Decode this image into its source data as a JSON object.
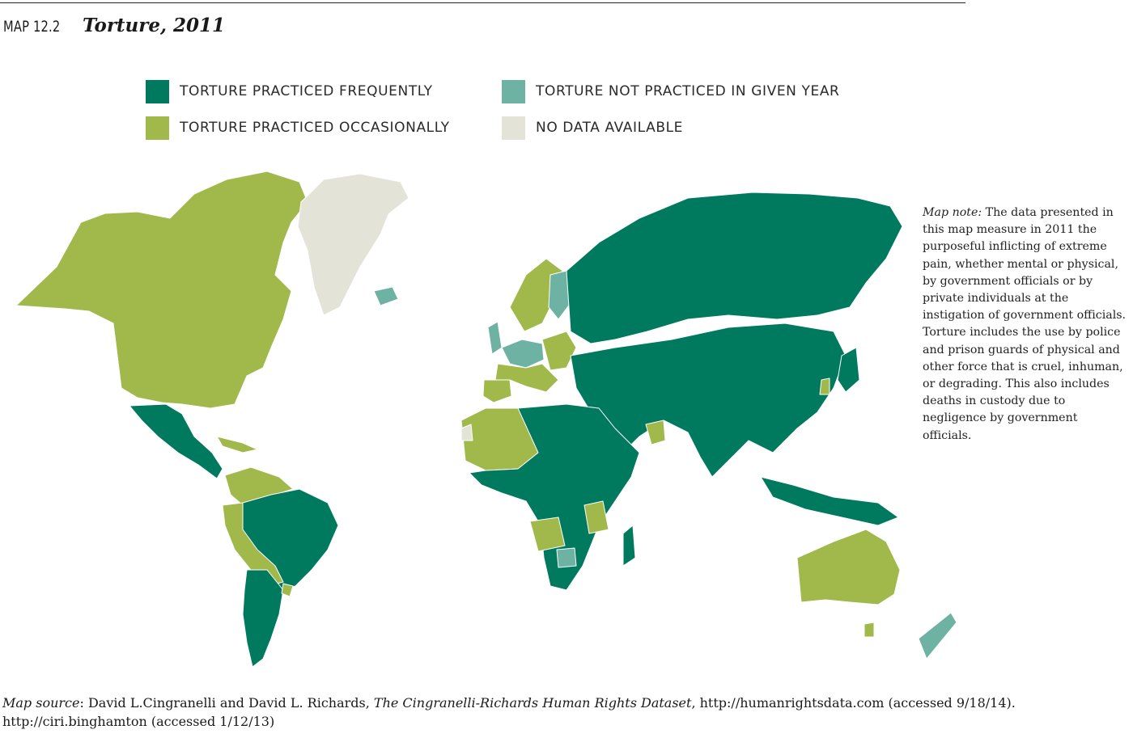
{
  "header": {
    "map_number": "MAP 12.2",
    "title": "Torture, 2011"
  },
  "legend": {
    "items": [
      {
        "label": "TORTURE PRACTICED FREQUENTLY",
        "color": "#007a5e"
      },
      {
        "label": "TORTURE NOT PRACTICED IN GIVEN YEAR",
        "color": "#6db2a2"
      },
      {
        "label": "TORTURE PRACTICED OCCASIONALLY",
        "color": "#a0b94a"
      },
      {
        "label": "NO DATA AVAILABLE",
        "color": "#e4e3d8"
      }
    ]
  },
  "note": {
    "label": "Map note:",
    "text": " The data presented in this map measure in 2011 the purposeful inflicting of extreme pain, whether mental or physical, by government officials or by private individuals at the instigation of government officials. Torture includes the use by police and prison guards of physical and other force that is cruel, inhuman, or degrading. This also includes deaths in custody due to negligence by government officials."
  },
  "source": {
    "label": "Map source",
    "authors": ": David L.Cingranelli and David L. Richards, ",
    "dataset": "The Cingranelli-Richards Human Rights Dataset",
    "rest": ", http://humanrightsdata.com (accessed 9/18/14). http://ciri.binghamton (accessed 1/12/13)"
  }
}
